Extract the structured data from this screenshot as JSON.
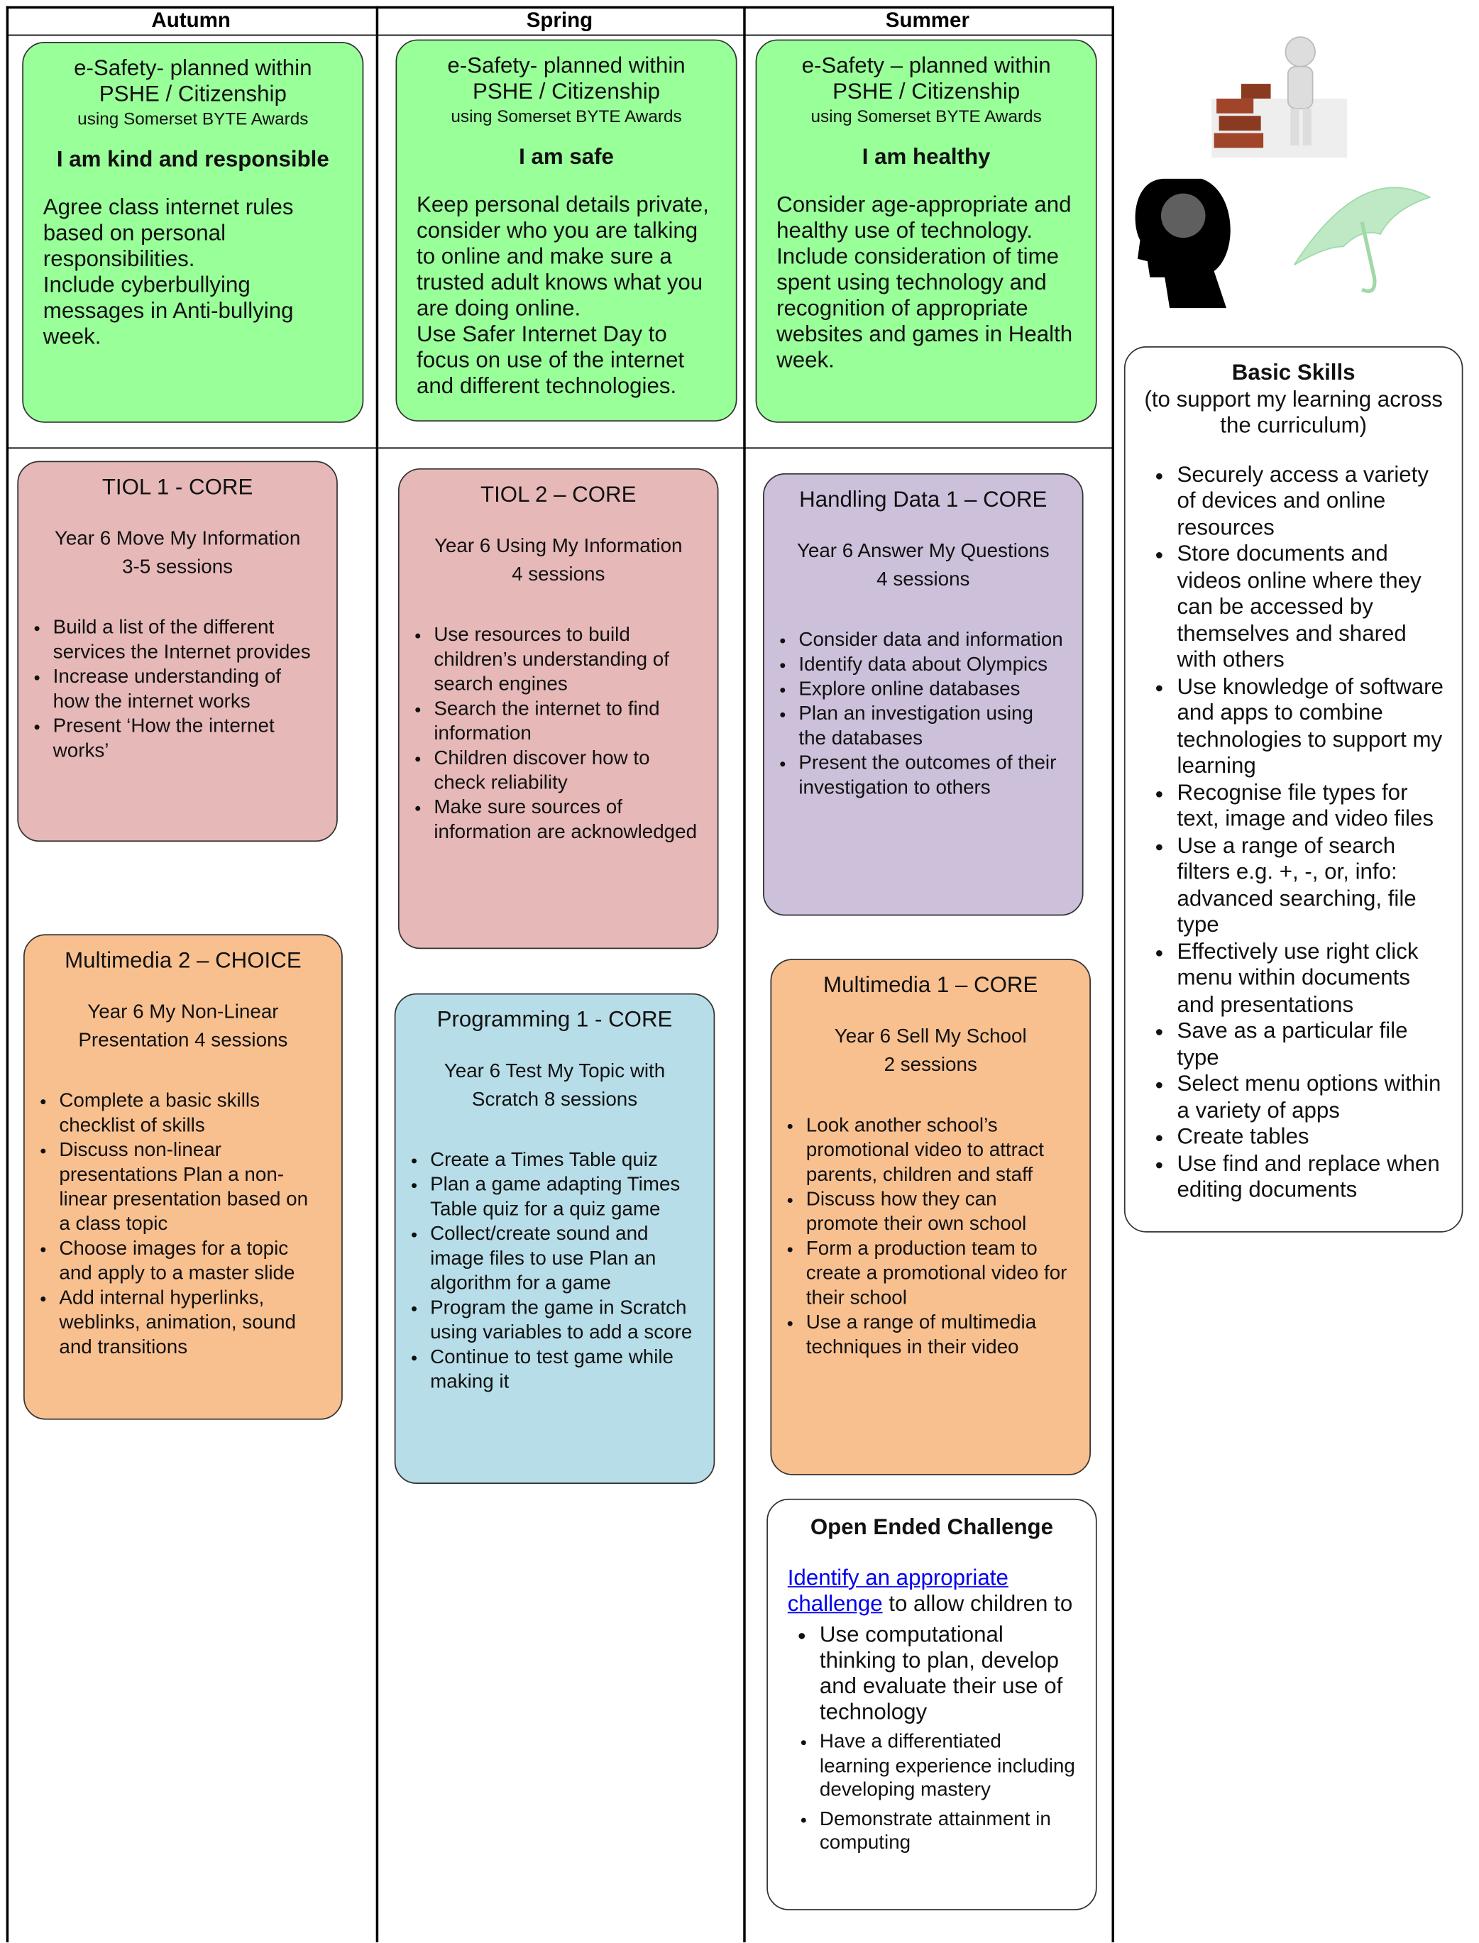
{
  "table": {
    "headers": [
      "Autumn",
      "Spring",
      "Summer"
    ]
  },
  "esafety": [
    {
      "heading": "e-Safety- planned within PSHE / Citizenship",
      "sub": "using Somerset BYTE Awards",
      "theme": "I am kind and responsible",
      "body": [
        "Agree class internet rules based on personal responsibilities.",
        "Include cyberbullying messages in Anti-bullying week."
      ]
    },
    {
      "heading": "e-Safety- planned within PSHE / Citizenship",
      "sub": "using Somerset BYTE Awards",
      "theme": "I am safe",
      "body": [
        "Keep personal details private, consider who you are talking to online and make sure a trusted adult knows what you are doing online.",
        "Use Safer Internet Day to focus on use of the internet and different technologies."
      ]
    },
    {
      "heading": "e-Safety – planned within PSHE / Citizenship",
      "sub": "using Somerset BYTE Awards",
      "theme": "I am healthy",
      "body": [
        "Consider age-appropriate and healthy use of technology.",
        "Include consideration of time spent using technology and recognition of appropriate websites and games in Health week."
      ]
    }
  ],
  "units": [
    {
      "title": "TIOL 1 - CORE",
      "lines": [
        "Year 6  Move My Information",
        "3-5 sessions"
      ],
      "bullets": [
        "Build a list of the different services the Internet provides",
        "Increase understanding of how the internet works",
        "Present ‘How the internet works’"
      ]
    },
    {
      "title": "Multimedia 2 – CHOICE",
      "lines": [
        "Year 6 My Non-Linear Presentation   4 sessions"
      ],
      "bullets": [
        "Complete a basic skills checklist of skills",
        "Discuss non-linear presentations Plan a non-linear presentation based on a class topic",
        "Choose images for a topic and apply to a master slide",
        "Add internal hyperlinks, weblinks, animation, sound and transitions"
      ]
    },
    {
      "title": "TIOL 2 – CORE",
      "lines": [
        "Year 6 Using My Information",
        "4 sessions"
      ],
      "bullets": [
        "Use resources to build children’s understanding of search engines",
        "Search the internet to find information",
        "Children discover how to check reliability",
        "Make sure sources of information are acknowledged"
      ]
    },
    {
      "title": "Programming 1 - CORE",
      "lines": [
        "Year 6 Test My Topic with Scratch   8 sessions"
      ],
      "bullets": [
        "Create a Times Table quiz",
        "Plan a game adapting Times Table quiz for a quiz game",
        "Collect/create sound and image files to use Plan an algorithm for a game",
        "Program the game in Scratch using variables to add a score",
        "Continue to test game while making it"
      ]
    },
    {
      "title": "Handling Data 1 – CORE",
      "lines": [
        "Year 6  Answer My Questions",
        "4 sessions"
      ],
      "bullets": [
        "Consider data and information",
        "Identify data about Olympics",
        "Explore online databases",
        "Plan an investigation using the databases",
        "Present the outcomes of their investigation to others"
      ]
    },
    {
      "title": "Multimedia 1 – CORE",
      "lines": [
        "Year 6 Sell My School",
        "2 sessions"
      ],
      "bullets": [
        "Look another school’s promotional video to attract parents, children and staff",
        "Discuss how they can promote their own school",
        "Form a production team to create a promotional video for their school",
        "Use a range of multimedia techniques in their video"
      ]
    }
  ],
  "basic_skills": {
    "title": "Basic Skills",
    "subtitle": "(to support my learning across the curriculum)",
    "items": [
      "Securely access a variety of devices and online resources",
      "Store documents and videos online where they can be accessed by themselves and shared with others",
      "Use knowledge of software and apps to combine technologies to support my learning",
      "Recognise file types for text, image and video files",
      "Use a range of search filters e.g. +, -, or, info: advanced searching, file type",
      "Effectively use right click menu within documents and presentations",
      "Save as a particular file type",
      "Select menu options within a variety of apps",
      "Create tables",
      "Use find and replace when editing documents"
    ]
  },
  "challenge": {
    "title": "Open Ended Challenge",
    "link": "Identify an appropriate challenge",
    "text": "to allow children to",
    "bullets": [
      "Use computational thinking to plan, develop and evaluate their use of technology",
      "Have a differentiated learning experience including developing mastery",
      "Demonstrate attainment in computing"
    ]
  }
}
